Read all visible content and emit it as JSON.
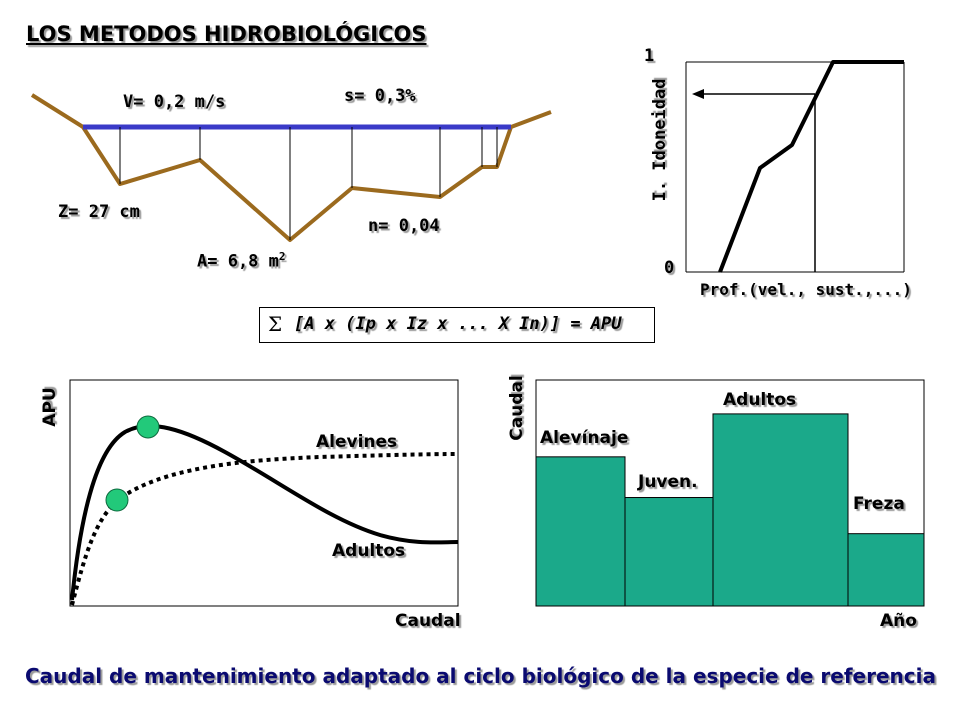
{
  "title": "LOS METODOS HIDROBIOLÓGICOS",
  "cross_section": {
    "velocity": "V= 0,2 m/s",
    "slope": "s= 0,3%",
    "depth": "Z= 27 cm",
    "area_prefix": "A= 6,8 m",
    "area_sup": "2",
    "roughness": "n= 0,04"
  },
  "suitability_chart": {
    "y_top": "1",
    "y_bottom": "0",
    "ylabel": "I. Idoneidad",
    "xlabel": "Prof.(vel., sust.,...)"
  },
  "formula": {
    "sigma": "Σ",
    "text": "[A x (Ip x Iz x ... X In)] = APU"
  },
  "apu_chart": {
    "ylabel": "APU",
    "xlabel": "Caudal",
    "series": [
      {
        "name": "Alevines"
      },
      {
        "name": "Adultos"
      }
    ]
  },
  "chart_data": {
    "type": "bar",
    "title": "",
    "xlabel": "Año",
    "ylabel": "Caudal",
    "categories": [
      "Alevínaje",
      "Juven.",
      "Adultos",
      "Freza"
    ],
    "values": [
      0.66,
      0.48,
      0.85,
      0.32
    ],
    "ylim": [
      0,
      1
    ],
    "bar_color": "#1ba98a",
    "grid": false
  },
  "caption": "Caudal de mantenimiento adaptado al ciclo biológico de la especie de referencia",
  "colors": {
    "river_bed": "#9b6a1e",
    "water_surface": "#3a3ac8",
    "teal": "#1ba98a",
    "marker": "#22c97a"
  }
}
